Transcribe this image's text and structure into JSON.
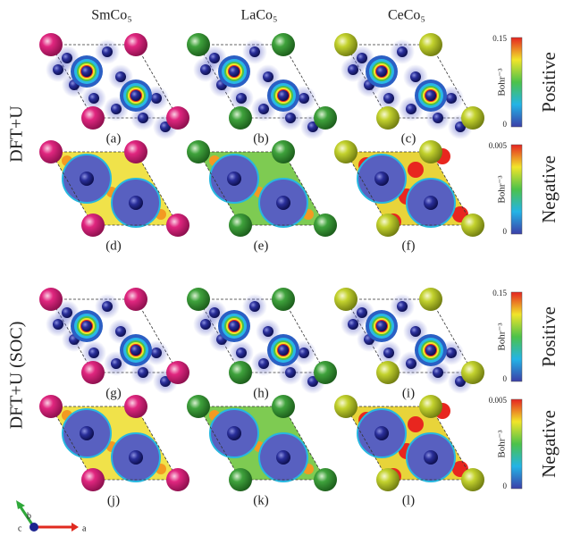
{
  "columns": [
    "SmCo₅",
    "LaCo₅",
    "CeCo₅"
  ],
  "rows": [
    "DFT+U",
    "DFT+U (SOC)"
  ],
  "panels": [
    "(a)",
    "(b)",
    "(c)",
    "(d)",
    "(e)",
    "(f)",
    "(g)",
    "(h)",
    "(i)",
    "(j)",
    "(k)",
    "(l)"
  ],
  "colorbars": [
    {
      "max": "0.15",
      "min": "0",
      "unit": "Bohr⁻³",
      "label": "Positive"
    },
    {
      "max": "0.005",
      "min": "0",
      "unit": "Bohr⁻³",
      "label": "Negative"
    },
    {
      "max": "0.15",
      "min": "0",
      "unit": "Bohr⁻³",
      "label": "Positive"
    },
    {
      "max": "0.005",
      "min": "0",
      "unit": "Bohr⁻³",
      "label": "Negative"
    }
  ],
  "axes": {
    "a": "a",
    "b": "b",
    "c": "c"
  }
}
